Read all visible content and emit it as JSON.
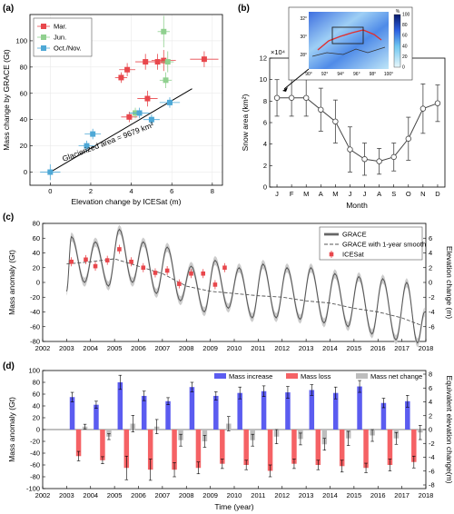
{
  "chart_data": [
    {
      "id": "a",
      "panel_label": "(a)",
      "type": "scatter",
      "xlabel": "Elevation change by ICESat (m)",
      "ylabel": "Mass change by GRACE (Gt)",
      "xlim": [
        -1,
        8.5
      ],
      "ylim": [
        -10,
        120
      ],
      "xticks": [
        0,
        2,
        4,
        6,
        8
      ],
      "yticks": [
        0,
        20,
        40,
        60,
        80,
        100
      ],
      "legend_position": "top-left",
      "series": [
        {
          "name": "Mar.",
          "color": "#e8474c",
          "marker": "square",
          "points": [
            [
              3.5,
              72,
              0.3,
              4
            ],
            [
              3.8,
              78,
              0.4,
              5
            ],
            [
              4.7,
              84,
              0.5,
              6
            ],
            [
              5.3,
              84,
              0.6,
              6
            ],
            [
              5.6,
              85,
              0.6,
              8
            ],
            [
              7.6,
              86,
              0.7,
              6
            ],
            [
              3.9,
              42,
              0.4,
              4
            ],
            [
              4.8,
              56,
              0.5,
              6
            ]
          ]
        },
        {
          "name": "Jun.",
          "color": "#90d08f",
          "marker": "square",
          "points": [
            [
              5.6,
              107,
              0.3,
              12
            ],
            [
              5.7,
              70,
              0.3,
              6
            ],
            [
              5.8,
              84,
              0.3,
              8
            ],
            [
              4.2,
              45,
              0.3,
              4
            ]
          ]
        },
        {
          "name": "Oct./Nov.",
          "color": "#4ea8d6",
          "marker": "square",
          "points": [
            [
              0.0,
              0,
              0.5,
              6
            ],
            [
              1.8,
              20,
              0.4,
              4
            ],
            [
              2.1,
              29,
              0.4,
              4
            ],
            [
              4.4,
              45,
              0.5,
              4
            ],
            [
              5.0,
              40,
              0.4,
              4
            ],
            [
              5.9,
              53,
              0.5,
              4
            ]
          ]
        }
      ],
      "fit_line": {
        "x": [
          0,
          7
        ],
        "y": [
          0,
          63.5
        ]
      },
      "annotation": "Glacierized area = 9679 km²"
    },
    {
      "id": "b",
      "panel_label": "(b)",
      "type": "line",
      "xlabel": "Month",
      "ylabel": "Snow area (km²)",
      "exponent": "×10⁴",
      "categories": [
        "J",
        "F",
        "M",
        "A",
        "M",
        "J",
        "J",
        "A",
        "S",
        "O",
        "N",
        "D"
      ],
      "ylim": [
        0,
        12
      ],
      "yticks": [
        0,
        2,
        4,
        6,
        8,
        10,
        12
      ],
      "values": [
        8.3,
        8.3,
        8.3,
        7.2,
        6.1,
        3.5,
        2.6,
        2.4,
        2.8,
        4.5,
        7.3,
        7.8
      ],
      "errors": [
        1.7,
        1.7,
        1.7,
        2.0,
        2.0,
        2.1,
        1.5,
        1.2,
        1.3,
        2.0,
        2.3,
        1.7
      ],
      "color": "#444444",
      "inset": {
        "colorbar_unit": "%",
        "colorbar_ticks": [
          "100",
          "80",
          "60",
          "40",
          "20",
          "0"
        ],
        "x_ticks": [
          "90°",
          "92°",
          "94°",
          "96°",
          "98°",
          "100°"
        ],
        "y_ticks": [
          "32°",
          "30°",
          "28°"
        ]
      }
    },
    {
      "id": "c",
      "panel_label": "(c)",
      "type": "line",
      "xlabel": "",
      "ylabel": "Mass anomaly (Gt)",
      "ylabel_right": "Elevation change (m)",
      "xlim": [
        2002,
        2018
      ],
      "ylim": [
        -80,
        80
      ],
      "yticks": [
        -80,
        -60,
        -40,
        -20,
        0,
        20,
        40,
        60,
        80
      ],
      "xticks": [
        2002,
        2003,
        2004,
        2005,
        2006,
        2007,
        2008,
        2009,
        2010,
        2011,
        2012,
        2013,
        2014,
        2015,
        2016,
        2017,
        2018
      ],
      "y2lim": [
        -8,
        8
      ],
      "y2ticks": [
        -6,
        -4,
        -2,
        0,
        2,
        4,
        6
      ],
      "legend_position": "top-right",
      "legend": [
        "GRACE",
        "GRACE with 1-year smooth",
        "ICESat"
      ],
      "grace_annual_peaks": [
        [
          2003.0,
          -12
        ],
        [
          2003.2,
          62
        ],
        [
          2003.75,
          0
        ],
        [
          2004.2,
          55
        ],
        [
          2004.75,
          -5
        ],
        [
          2005.2,
          72
        ],
        [
          2005.75,
          0
        ],
        [
          2006.2,
          55
        ],
        [
          2006.75,
          -15
        ],
        [
          2007.2,
          48
        ],
        [
          2007.75,
          -25
        ],
        [
          2008.2,
          22
        ],
        [
          2008.75,
          -40
        ],
        [
          2009.2,
          30
        ],
        [
          2009.75,
          -35
        ],
        [
          2010.2,
          20
        ],
        [
          2010.75,
          -48
        ],
        [
          2011.2,
          25
        ],
        [
          2011.75,
          -48
        ],
        [
          2012.2,
          20
        ],
        [
          2012.75,
          -50
        ],
        [
          2013.2,
          20
        ],
        [
          2013.75,
          -55
        ],
        [
          2014.2,
          12
        ],
        [
          2014.75,
          -60
        ],
        [
          2015.2,
          8
        ],
        [
          2015.75,
          -70
        ],
        [
          2016.2,
          5
        ],
        [
          2016.75,
          -78
        ],
        [
          2017.2,
          0
        ],
        [
          2017.65,
          -82
        ],
        [
          2017.95,
          -40
        ]
      ],
      "grace_smooth": [
        [
          2003.0,
          25
        ],
        [
          2004.0,
          28
        ],
        [
          2005.0,
          32
        ],
        [
          2006.0,
          22
        ],
        [
          2007.0,
          12
        ],
        [
          2008.0,
          -5
        ],
        [
          2009.0,
          -12
        ],
        [
          2010.0,
          -15
        ],
        [
          2011.0,
          -18
        ],
        [
          2012.0,
          -20
        ],
        [
          2013.0,
          -25
        ],
        [
          2014.0,
          -28
        ],
        [
          2015.0,
          -35
        ],
        [
          2016.0,
          -40
        ],
        [
          2017.0,
          -48
        ],
        [
          2017.8,
          -58
        ]
      ],
      "icesat": [
        [
          2003.2,
          2.8
        ],
        [
          2003.8,
          3.1
        ],
        [
          2004.2,
          2.2
        ],
        [
          2004.7,
          3.0
        ],
        [
          2005.2,
          4.5
        ],
        [
          2005.7,
          2.8
        ],
        [
          2006.2,
          2.0
        ],
        [
          2006.7,
          1.3
        ],
        [
          2007.2,
          1.6
        ],
        [
          2007.7,
          -0.2
        ],
        [
          2008.2,
          1.2
        ],
        [
          2008.7,
          1.2
        ],
        [
          2009.2,
          -0.3
        ],
        [
          2009.6,
          2.0
        ]
      ]
    },
    {
      "id": "d",
      "panel_label": "(d)",
      "type": "bar",
      "xlabel": "Time (year)",
      "ylabel": "Mass anomaly (Gt)",
      "ylabel_right": "Equivalent elevation change(m)",
      "xlim": [
        2002,
        2018
      ],
      "ylim": [
        -100,
        100
      ],
      "yticks": [
        -100,
        -80,
        -60,
        -40,
        -20,
        0,
        20,
        40,
        60,
        80,
        100
      ],
      "y2ticks": [
        -8,
        -6,
        -4,
        -2,
        0,
        2,
        4,
        6,
        8
      ],
      "xticks": [
        2002,
        2003,
        2004,
        2005,
        2006,
        2007,
        2008,
        2009,
        2010,
        2011,
        2012,
        2013,
        2014,
        2015,
        2016,
        2017,
        2018
      ],
      "legend_position": "top",
      "years": [
        2003,
        2004,
        2005,
        2006,
        2007,
        2008,
        2009,
        2010,
        2011,
        2012,
        2013,
        2014,
        2015,
        2016,
        2017
      ],
      "series": [
        {
          "name": "Mass increase",
          "color": "#5b5cf0",
          "values": [
            55,
            42,
            80,
            57,
            48,
            72,
            57,
            62,
            65,
            63,
            67,
            62,
            73,
            45,
            48
          ],
          "errors": [
            8,
            6,
            12,
            8,
            6,
            8,
            7,
            10,
            9,
            10,
            9,
            10,
            10,
            8,
            10
          ]
        },
        {
          "name": "Mass loss",
          "color": "#f56265",
          "values": [
            -45,
            -52,
            -65,
            -68,
            -68,
            -65,
            -58,
            -60,
            -70,
            -58,
            -60,
            -62,
            -65,
            -60,
            -55
          ],
          "errors": [
            8,
            6,
            20,
            18,
            12,
            10,
            8,
            8,
            10,
            8,
            8,
            10,
            8,
            10,
            10
          ]
        },
        {
          "name": "Mass net change",
          "color": "#bdbdbd",
          "values": [
            5,
            -12,
            10,
            5,
            -18,
            -20,
            10,
            -18,
            -12,
            -16,
            -25,
            -15,
            -10,
            -15,
            -5
          ],
          "errors": [
            4,
            5,
            14,
            12,
            10,
            10,
            12,
            10,
            12,
            10,
            10,
            12,
            10,
            10,
            12
          ]
        }
      ]
    }
  ]
}
